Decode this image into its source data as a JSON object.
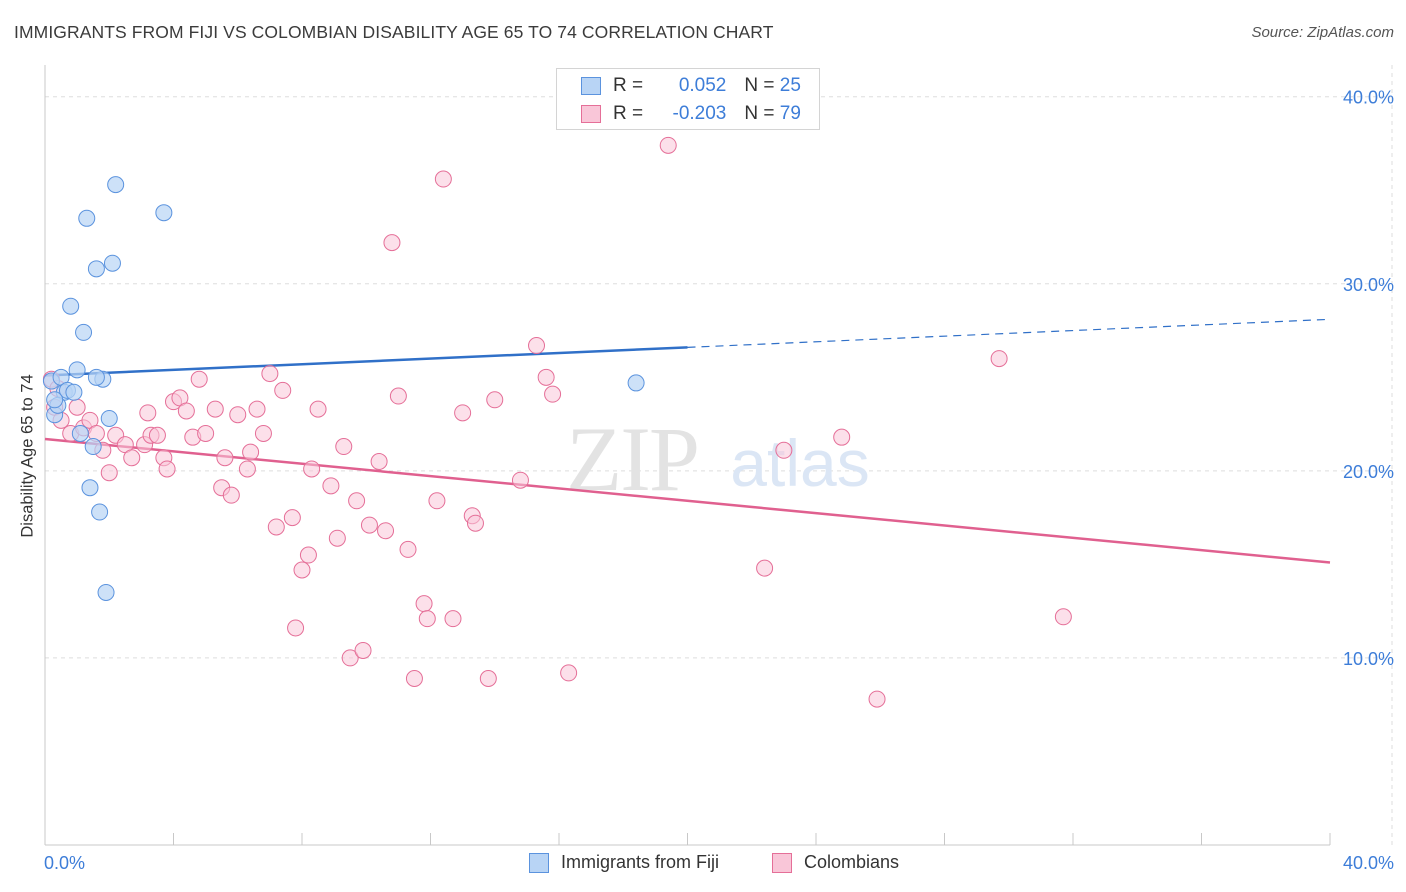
{
  "title": "IMMIGRANTS FROM FIJI VS COLOMBIAN DISABILITY AGE 65 TO 74 CORRELATION CHART",
  "source": "Source: ZipAtlas.com",
  "watermark": {
    "zip": "ZIP",
    "atlas": "atlas"
  },
  "legend_top": {
    "rows": [
      {
        "r_label": "R = ",
        "r_value": "0.052",
        "n_label": "N = ",
        "n_value": "25"
      },
      {
        "r_label": "R = ",
        "r_value": "-0.203",
        "n_label": "N = ",
        "n_value": "79"
      }
    ]
  },
  "legend_bottom": [
    "Immigrants from Fiji",
    "Colombians"
  ],
  "colors": {
    "fiji_fill": "#b8d4f5",
    "fiji_stroke": "#5b93de",
    "fiji_line": "#3070c8",
    "col_fill": "#f9c6d8",
    "col_stroke": "#e56f98",
    "col_line": "#e0608f",
    "grid": "#dddddd",
    "tick_label": "#3d7dd8"
  },
  "chart_data": {
    "type": "scatter",
    "title": "IMMIGRANTS FROM FIJI VS COLOMBIAN DISABILITY AGE 65 TO 74 CORRELATION CHART",
    "xlabel": "",
    "ylabel": "Disability Age 65 to 74",
    "xlim": [
      0,
      40
    ],
    "ylim": [
      0,
      41
    ],
    "x_tick_labels": {
      "left": "0.0%",
      "right": "40.0%"
    },
    "y_ticks": [
      10,
      20,
      30,
      40
    ],
    "y_tick_labels": [
      "10.0%",
      "20.0%",
      "30.0%",
      "40.0%"
    ],
    "series": [
      {
        "name": "Immigrants from Fiji",
        "r": 0.052,
        "n": 25,
        "trend": {
          "x0": 0,
          "y0": 25.1,
          "x1": 20,
          "y1": 26.6,
          "dash_x1": 40,
          "dash_y1": 28.1
        },
        "points": [
          [
            0.2,
            24.8
          ],
          [
            0.3,
            23.0
          ],
          [
            0.5,
            25.0
          ],
          [
            0.6,
            24.2
          ],
          [
            0.8,
            28.8
          ],
          [
            0.4,
            23.5
          ],
          [
            1.0,
            25.4
          ],
          [
            1.2,
            27.4
          ],
          [
            1.3,
            33.5
          ],
          [
            1.6,
            30.8
          ],
          [
            1.8,
            24.9
          ],
          [
            2.0,
            22.8
          ],
          [
            2.1,
            31.1
          ],
          [
            2.2,
            35.3
          ],
          [
            1.5,
            21.3
          ],
          [
            1.1,
            22.0
          ],
          [
            1.4,
            19.1
          ],
          [
            1.7,
            17.8
          ],
          [
            1.9,
            13.5
          ],
          [
            3.7,
            33.8
          ],
          [
            0.7,
            24.3
          ],
          [
            0.9,
            24.2
          ],
          [
            18.4,
            24.7
          ],
          [
            0.3,
            23.8
          ],
          [
            1.6,
            25.0
          ]
        ]
      },
      {
        "name": "Colombians",
        "r": -0.203,
        "n": 79,
        "trend": {
          "x0": 0,
          "y0": 21.7,
          "x1": 40,
          "y1": 15.1
        },
        "points": [
          [
            0.2,
            24.9
          ],
          [
            0.3,
            23.4
          ],
          [
            0.5,
            22.7
          ],
          [
            0.8,
            22.0
          ],
          [
            1.0,
            23.4
          ],
          [
            1.2,
            22.3
          ],
          [
            1.4,
            22.7
          ],
          [
            1.6,
            22.0
          ],
          [
            1.8,
            21.1
          ],
          [
            2.0,
            19.9
          ],
          [
            2.2,
            21.9
          ],
          [
            2.5,
            21.4
          ],
          [
            2.7,
            20.7
          ],
          [
            3.1,
            21.4
          ],
          [
            3.2,
            23.1
          ],
          [
            3.3,
            21.9
          ],
          [
            3.5,
            21.9
          ],
          [
            3.7,
            20.7
          ],
          [
            3.8,
            20.1
          ],
          [
            4.0,
            23.7
          ],
          [
            4.2,
            23.9
          ],
          [
            4.4,
            23.2
          ],
          [
            4.6,
            21.8
          ],
          [
            4.8,
            24.9
          ],
          [
            5.0,
            22.0
          ],
          [
            5.3,
            23.3
          ],
          [
            5.5,
            19.1
          ],
          [
            5.6,
            20.7
          ],
          [
            5.8,
            18.7
          ],
          [
            6.0,
            23.0
          ],
          [
            6.3,
            20.1
          ],
          [
            6.4,
            21.0
          ],
          [
            6.6,
            23.3
          ],
          [
            6.8,
            22.0
          ],
          [
            7.0,
            25.2
          ],
          [
            7.2,
            17.0
          ],
          [
            7.4,
            24.3
          ],
          [
            7.7,
            17.5
          ],
          [
            7.8,
            11.6
          ],
          [
            8.0,
            14.7
          ],
          [
            8.2,
            15.5
          ],
          [
            8.3,
            20.1
          ],
          [
            8.5,
            23.3
          ],
          [
            8.9,
            19.2
          ],
          [
            9.1,
            16.4
          ],
          [
            9.3,
            21.3
          ],
          [
            9.5,
            10.0
          ],
          [
            9.7,
            18.4
          ],
          [
            9.9,
            10.4
          ],
          [
            10.1,
            17.1
          ],
          [
            10.4,
            20.5
          ],
          [
            10.6,
            16.8
          ],
          [
            10.8,
            32.2
          ],
          [
            11.0,
            24.0
          ],
          [
            11.3,
            15.8
          ],
          [
            11.5,
            8.9
          ],
          [
            11.8,
            12.9
          ],
          [
            11.9,
            12.1
          ],
          [
            12.2,
            18.4
          ],
          [
            12.4,
            35.6
          ],
          [
            12.7,
            12.1
          ],
          [
            13.0,
            23.1
          ],
          [
            13.3,
            17.6
          ],
          [
            13.4,
            17.2
          ],
          [
            13.8,
            8.9
          ],
          [
            14.0,
            23.8
          ],
          [
            14.8,
            19.5
          ],
          [
            15.3,
            26.7
          ],
          [
            15.6,
            25.0
          ],
          [
            15.8,
            24.1
          ],
          [
            16.3,
            9.2
          ],
          [
            19.4,
            37.4
          ],
          [
            22.4,
            14.8
          ],
          [
            23.0,
            21.1
          ],
          [
            24.8,
            21.8
          ],
          [
            25.9,
            7.8
          ],
          [
            29.7,
            26.0
          ],
          [
            31.7,
            12.2
          ],
          [
            0.4,
            24.4
          ]
        ]
      }
    ]
  }
}
